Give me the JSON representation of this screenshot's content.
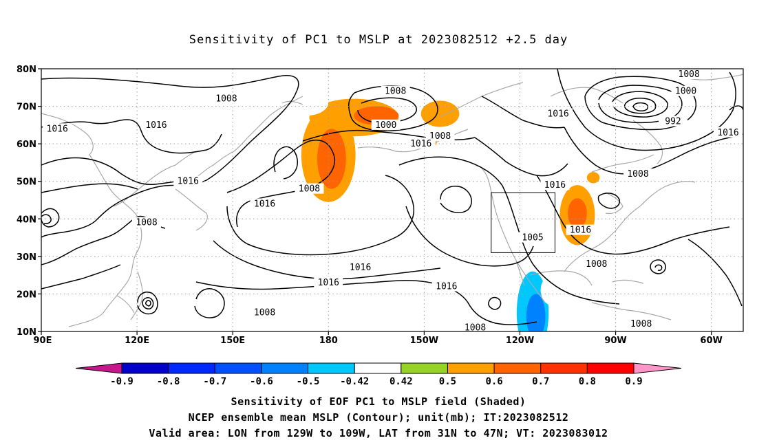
{
  "title": "Sensitivity of PC1 to MSLP at 2023082512 +2.5 day",
  "map": {
    "lon_range": [
      90,
      310
    ],
    "lat_range": [
      10,
      80
    ],
    "lat_ticks": [
      {
        "lat": 80,
        "label": "80N"
      },
      {
        "lat": 70,
        "label": "70N"
      },
      {
        "lat": 60,
        "label": "60N"
      },
      {
        "lat": 50,
        "label": "50N"
      },
      {
        "lat": 40,
        "label": "40N"
      },
      {
        "lat": 30,
        "label": "30N"
      },
      {
        "lat": 20,
        "label": "20N"
      },
      {
        "lat": 10,
        "label": "10N"
      }
    ],
    "lon_ticks": [
      {
        "lon": 90,
        "label": "90E"
      },
      {
        "lon": 120,
        "label": "120E"
      },
      {
        "lon": 150,
        "label": "150E"
      },
      {
        "lon": 180,
        "label": "180"
      },
      {
        "lon": 210,
        "label": "150W"
      },
      {
        "lon": 240,
        "label": "120W"
      },
      {
        "lon": 270,
        "label": "90W"
      },
      {
        "lon": 300,
        "label": "60W"
      }
    ],
    "valid_area": {
      "lon": [
        231,
        251
      ],
      "lat": [
        31,
        47
      ]
    },
    "contour_labels": [
      {
        "text": "1008",
        "lon": 148,
        "lat": 72
      },
      {
        "text": "1016",
        "lon": 95,
        "lat": 64
      },
      {
        "text": "1016",
        "lon": 126,
        "lat": 65
      },
      {
        "text": "1016",
        "lon": 136,
        "lat": 50
      },
      {
        "text": "1016",
        "lon": 160,
        "lat": 44
      },
      {
        "text": "1008",
        "lon": 123,
        "lat": 39
      },
      {
        "text": "1008",
        "lon": 174,
        "lat": 48
      },
      {
        "text": "1008",
        "lon": 201,
        "lat": 74
      },
      {
        "text": "1000",
        "lon": 198,
        "lat": 65
      },
      {
        "text": "1008",
        "lon": 215,
        "lat": 62
      },
      {
        "text": "1016",
        "lon": 209,
        "lat": 60
      },
      {
        "text": "1016",
        "lon": 252,
        "lat": 68
      },
      {
        "text": "1008",
        "lon": 293,
        "lat": 79
      },
      {
        "text": "1000",
        "lon": 292,
        "lat": 74
      },
      {
        "text": "992",
        "lon": 288,
        "lat": 66
      },
      {
        "text": "1016",
        "lon": 310,
        "lat": 63
      },
      {
        "text": "1008",
        "lon": 277,
        "lat": 52
      },
      {
        "text": "1016",
        "lon": 251,
        "lat": 49
      },
      {
        "text": "1005",
        "lon": 244,
        "lat": 35
      },
      {
        "text": "1016",
        "lon": 259,
        "lat": 37
      },
      {
        "text": "1008",
        "lon": 264,
        "lat": 28
      },
      {
        "text": "1016",
        "lon": 190,
        "lat": 27
      },
      {
        "text": "1016",
        "lon": 180,
        "lat": 23
      },
      {
        "text": "1016",
        "lon": 217,
        "lat": 22
      },
      {
        "text": "1008",
        "lon": 160,
        "lat": 15
      },
      {
        "text": "1008",
        "lon": 226,
        "lat": 11
      },
      {
        "text": "1008",
        "lon": 278,
        "lat": 12
      }
    ],
    "shaded_regions": [
      {
        "lon": 188,
        "lat": 67,
        "rx": 28,
        "ry": 10,
        "value": 0.5
      },
      {
        "lon": 195,
        "lat": 67.5,
        "rx": 14,
        "ry": 5,
        "value": 0.6
      },
      {
        "lon": 215,
        "lat": 68,
        "rx": 12,
        "ry": 7,
        "value": 0.5
      },
      {
        "lon": 180,
        "lat": 57,
        "rx": 17,
        "ry": 25,
        "value": 0.5
      },
      {
        "lon": 181,
        "lat": 56,
        "rx": 9,
        "ry": 16,
        "value": 0.6
      },
      {
        "lon": 173,
        "lat": 71,
        "rx": 14,
        "ry": 7,
        "value": -0.42
      },
      {
        "lon": 198,
        "lat": 58,
        "rx": 10,
        "ry": 7,
        "value": -0.42
      },
      {
        "lon": 258,
        "lat": 41,
        "rx": 11,
        "ry": 16,
        "value": 0.5
      },
      {
        "lon": 258,
        "lat": 41.5,
        "rx": 6,
        "ry": 8,
        "value": 0.6
      },
      {
        "lon": 243,
        "lat": 16,
        "rx": 14,
        "ry": 34,
        "value": -0.42
      },
      {
        "lon": 244,
        "lat": 15,
        "rx": 10,
        "ry": 22,
        "value": -0.5
      },
      {
        "lon": 245,
        "lat": 14,
        "rx": 6,
        "ry": 12,
        "value": -0.6
      },
      {
        "lon": 250,
        "lat": 21,
        "rx": 7,
        "ry": 8,
        "value": -0.42
      },
      {
        "lon": 252,
        "lat": 17,
        "rx": 5,
        "ry": 5,
        "value": -0.42
      },
      {
        "lon": 96,
        "lat": 33,
        "rx": 6,
        "ry": 6,
        "value": -0.42
      },
      {
        "lon": 164,
        "lat": 53,
        "rx": 4,
        "ry": 4,
        "value": -0.42
      },
      {
        "lon": 149,
        "lat": 16,
        "rx": 4,
        "ry": 5,
        "value": -0.42
      },
      {
        "lon": 309,
        "lat": 12,
        "rx": 4,
        "ry": 4,
        "value": -0.42
      },
      {
        "lon": 212,
        "lat": 60.5,
        "rx": 4,
        "ry": 3,
        "value": 0.5
      },
      {
        "lon": 263,
        "lat": 51,
        "rx": 4,
        "ry": 3,
        "value": 0.5
      }
    ]
  },
  "colorbar": {
    "labels": [
      "-0.9",
      "-0.8",
      "-0.7",
      "-0.6",
      "-0.5",
      "-0.42",
      "0.42",
      "0.5",
      "0.6",
      "0.7",
      "0.8",
      "0.9"
    ],
    "colors": [
      "#0000c8",
      "#0028ff",
      "#0050ff",
      "#0082ff",
      "#00c8ff",
      "#ffffff",
      "#96d228",
      "#ffa000",
      "#ff6400",
      "#ff3200",
      "#ff0000"
    ],
    "low_end_color": "#c8168c",
    "high_end_color": "#ff96c8"
  },
  "caption": {
    "line1": "Sensitivity of EOF PC1 to MSLP field (Shaded)",
    "line2": "NCEP ensemble mean MSLP (Contour); unit(mb); IT:2023082512",
    "line3": "Valid area: LON from 129W to 109W, LAT from 31N to 47N; VT: 2023083012"
  }
}
